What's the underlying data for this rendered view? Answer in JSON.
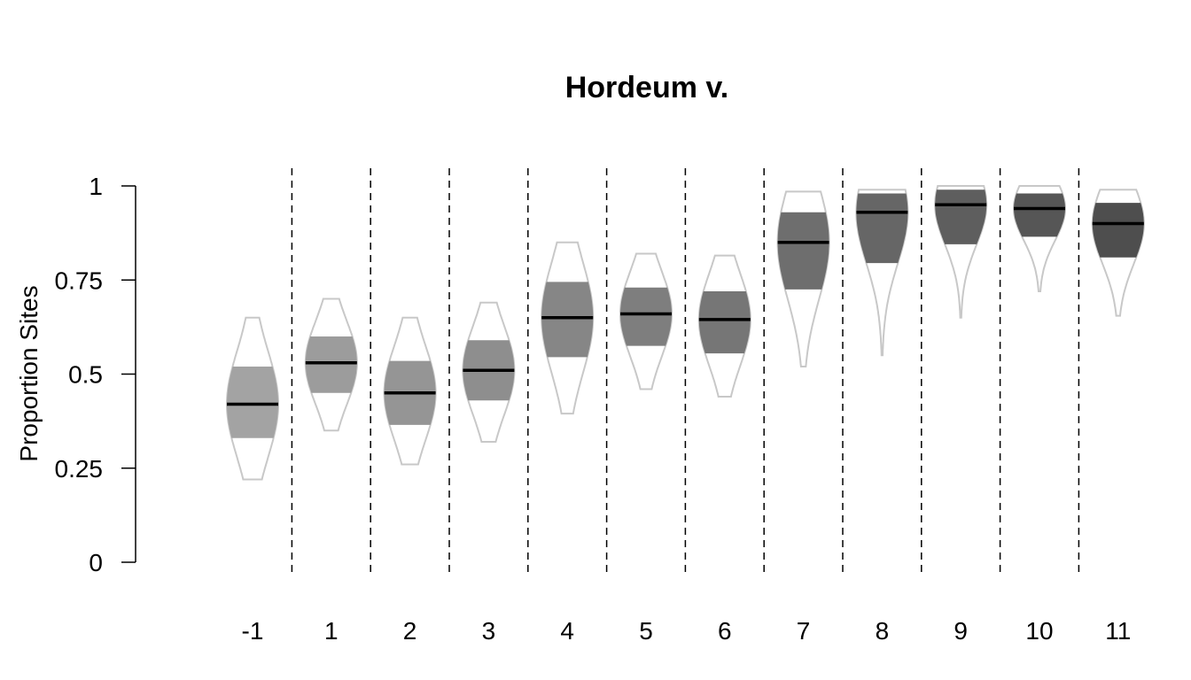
{
  "chart_data": {
    "type": "violin",
    "title": "Hordeum v.",
    "xlabel": "",
    "ylabel": "Proportion Sites",
    "ylim": [
      0,
      1
    ],
    "yticks": [
      0,
      0.25,
      0.5,
      0.75,
      1
    ],
    "ytick_labels": [
      "0",
      "0.25",
      "0.5",
      "0.75",
      "1"
    ],
    "categories": [
      "-1",
      "1",
      "2",
      "3",
      "4",
      "5",
      "6",
      "7",
      "8",
      "9",
      "10",
      "11"
    ],
    "median": [
      0.42,
      0.53,
      0.45,
      0.51,
      0.65,
      0.66,
      0.645,
      0.85,
      0.93,
      0.95,
      0.94,
      0.9
    ],
    "q1": [
      0.33,
      0.45,
      0.365,
      0.43,
      0.545,
      0.575,
      0.555,
      0.725,
      0.795,
      0.845,
      0.865,
      0.81
    ],
    "q3": [
      0.52,
      0.6,
      0.535,
      0.59,
      0.745,
      0.73,
      0.72,
      0.93,
      0.98,
      0.99,
      0.98,
      0.955
    ],
    "min": [
      0.22,
      0.35,
      0.26,
      0.32,
      0.395,
      0.46,
      0.44,
      0.52,
      0.55,
      0.65,
      0.72,
      0.655
    ],
    "max": [
      0.65,
      0.7,
      0.65,
      0.69,
      0.85,
      0.82,
      0.815,
      0.985,
      0.99,
      1.0,
      1.0,
      0.99
    ],
    "fill_colors": [
      "#a3a3a3",
      "#9c9c9c",
      "#959595",
      "#8e8e8e",
      "#868686",
      "#7e7e7e",
      "#767676",
      "#6e6e6e",
      "#666666",
      "#5e5e5e",
      "#565656",
      "#4e4e4e"
    ],
    "outline_color": "#c8c8c8",
    "median_color": "#000000",
    "grid": false,
    "separators": "dashed vertical lines between categories"
  }
}
